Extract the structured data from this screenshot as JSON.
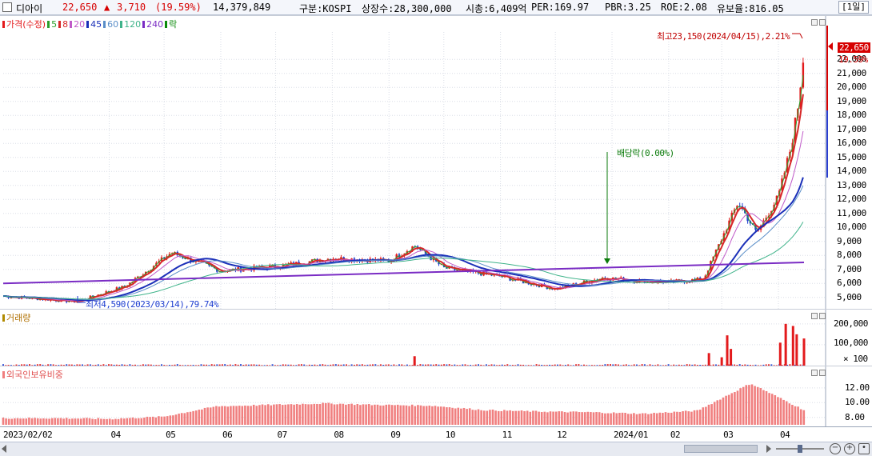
{
  "header": {
    "name": "디아이",
    "price": "22,650",
    "change_arrow": "▲",
    "change": "3,710",
    "change_pct": "(19.59%)",
    "volume": "14,379,849",
    "market": "구분:KOSPI",
    "listed": "상장수:28,300,000",
    "mcap": "시총:6,409억",
    "per": "PER:169.97",
    "pbr": "PBR:3.25",
    "roe": "ROE:2.08",
    "float": "유보율:816.05",
    "period": "[1일]"
  },
  "colors": {
    "up": "#e31a1c",
    "down": "#1f3fd0",
    "ma5": "#2ca02c",
    "ma8": "#d62728",
    "ma20": "#c05ac8",
    "ma45": "#1a2fb8",
    "ma60": "#5a8ec8",
    "ma120": "#3fb38a",
    "ma240": "#7a2cc4",
    "foreign": "#f07f7f"
  },
  "price_pane": {
    "legend": [
      {
        "label": "가격(수정)",
        "color": "#e31a1c"
      },
      {
        "label": "5",
        "color": "#2ca02c"
      },
      {
        "label": "8",
        "color": "#d62728"
      },
      {
        "label": "20",
        "color": "#c05ac8"
      },
      {
        "label": "45",
        "color": "#1a2fb8"
      },
      {
        "label": "60",
        "color": "#5a8ec8"
      },
      {
        "label": "120",
        "color": "#3fb38a"
      },
      {
        "label": "240",
        "color": "#7a2cc4"
      },
      {
        "label": "락",
        "color": "#0a8a0a"
      }
    ],
    "yticks": [
      "22,000",
      "21,000",
      "20,000",
      "19,000",
      "18,000",
      "17,000",
      "16,000",
      "15,000",
      "14,000",
      "13,000",
      "12,000",
      "11,000",
      "10,000",
      "9,000",
      "8,000",
      "7,000",
      "6,000",
      "5,000"
    ],
    "price_tag": "22,650",
    "pct_tag": "19.59%",
    "high_label": "최고23,150(2024/04/15),2.21%",
    "low_label": "최저4,590(2023/03/14),79.74%",
    "dividend_label": "배당락(0.00%)"
  },
  "volume_pane": {
    "legend": "거래량",
    "yticks": [
      "200,000",
      "100,000",
      "× 100"
    ]
  },
  "foreign_pane": {
    "legend": "외국인보유비중",
    "yticks": [
      "12.00",
      "10.00",
      "8.00"
    ]
  },
  "xaxis": {
    "labels": [
      "2023/02/02",
      "04",
      "05",
      "06",
      "07",
      "08",
      "09",
      "10",
      "11",
      "12",
      "2024/01",
      "02",
      "03",
      "04"
    ]
  },
  "chart_data": {
    "type": "line",
    "title": "디아이",
    "ylim": [
      4300,
      23500
    ],
    "x_range": [
      "2023/02/02",
      "2024/04/15"
    ],
    "series": [
      {
        "name": "가격(수정)",
        "type": "candlestick",
        "x": [
          "2023/02/02",
          "2023/03/14",
          "2023/04/10",
          "2023/05/05",
          "2023/06/01",
          "2023/07/01",
          "2023/08/01",
          "2023/09/01",
          "2023/09/15",
          "2023/10/01",
          "2023/11/01",
          "2023/12/01",
          "2023/12/27",
          "2024/01/15",
          "2024/02/01",
          "2024/02/20",
          "2024/03/01",
          "2024/03/10",
          "2024/03/20",
          "2024/04/01",
          "2024/04/08",
          "2024/04/12",
          "2024/04/15"
        ],
        "values": [
          5100,
          4700,
          5800,
          8200,
          6900,
          7200,
          7800,
          7600,
          8700,
          7100,
          6500,
          5600,
          6400,
          6200,
          6100,
          6300,
          9200,
          11800,
          9600,
          12200,
          15800,
          18900,
          22650
        ]
      },
      {
        "name": "240",
        "values_start_end": [
          6200,
          7500
        ]
      }
    ]
  },
  "volume_data": {
    "type": "bar",
    "ylim": [
      0,
      230000
    ],
    "spikes": [
      {
        "x": "2023/09/15",
        "value": 45000
      },
      {
        "x": "2024/02/23",
        "value": 60000
      },
      {
        "x": "2024/03/01",
        "value": 40000
      },
      {
        "x": "2024/03/04",
        "value": 145000
      },
      {
        "x": "2024/03/06",
        "value": 80000
      },
      {
        "x": "2024/04/02",
        "value": 110000
      },
      {
        "x": "2024/04/05",
        "value": 200000
      },
      {
        "x": "2024/04/09",
        "value": 190000
      },
      {
        "x": "2024/04/11",
        "value": 150000
      },
      {
        "x": "2024/04/15",
        "value": 130000
      }
    ]
  },
  "foreign_data": {
    "type": "bar",
    "ylim": [
      7.0,
      13.5
    ],
    "values_monthly": [
      7.9,
      7.9,
      7.8,
      8.1,
      9.5,
      9.7,
      9.9,
      9.7,
      9.6,
      9.0,
      8.8,
      8.7,
      8.5,
      8.9,
      12.6,
      9.0
    ]
  }
}
